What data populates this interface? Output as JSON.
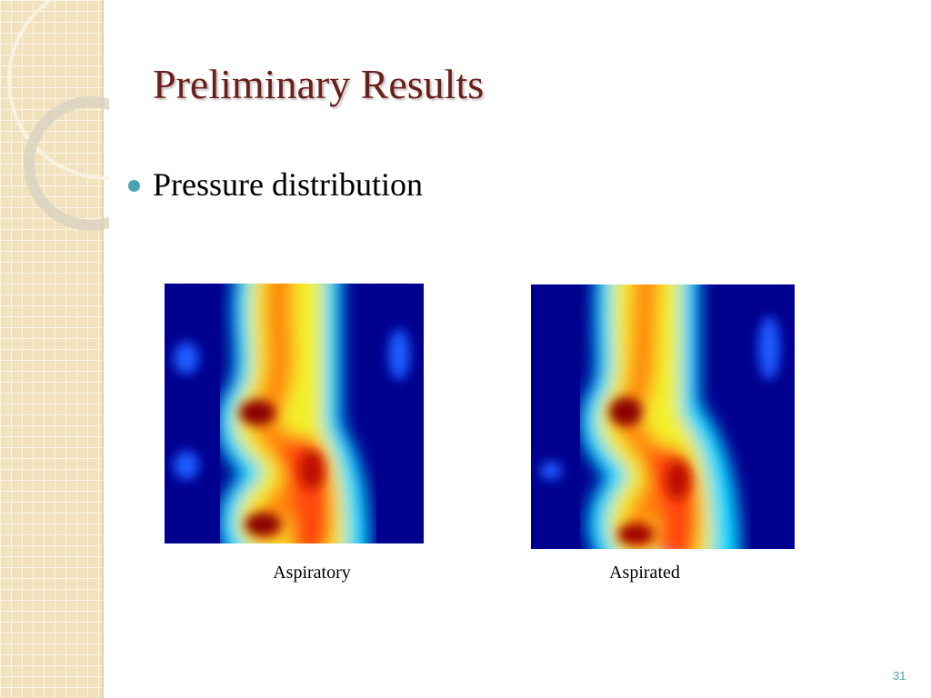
{
  "title": "Preliminary Results",
  "bullets": [
    "Pressure distribution"
  ],
  "figures": [
    {
      "caption": "Aspiratory"
    },
    {
      "caption": "Aspirated"
    }
  ],
  "page_number": "31"
}
